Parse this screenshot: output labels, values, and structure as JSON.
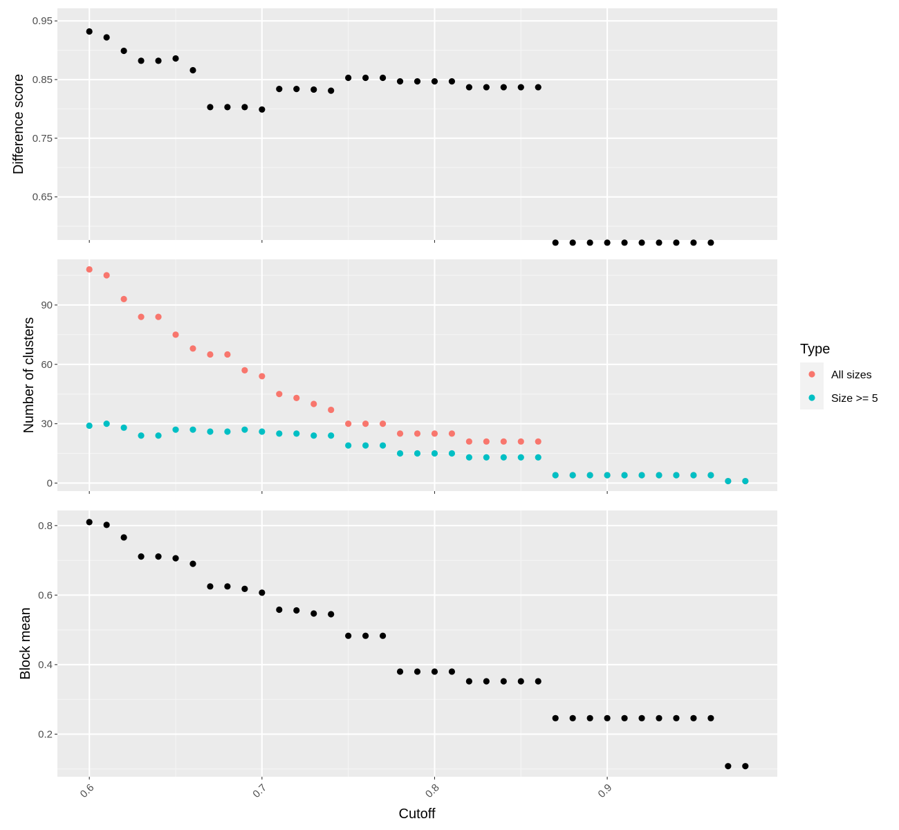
{
  "colors": {
    "panel_bg": "#ebebeb",
    "grid_major": "#ffffff",
    "grid_minor": "#f5f5f5",
    "tick_mark": "#333333",
    "tick_text": "#4d4d4d",
    "black_points": "#000000",
    "all_sizes": "#f8766d",
    "size_ge_5": "#00bfc4",
    "legend_key_bg": "#f2f2f2"
  },
  "chart_data": {
    "type": "scatter",
    "xlabel": "Cutoff",
    "x_tick_labels": [
      "0.6",
      "0.7",
      "0.8",
      "0.9"
    ],
    "x_ticks": [
      0.6,
      0.7,
      0.8,
      0.9
    ],
    "xlim": [
      0.5815,
      0.9985
    ],
    "legend": {
      "title": "Type",
      "position": "right",
      "entries": [
        {
          "label": "All sizes",
          "color": "#f8766d"
        },
        {
          "label": "Size >= 5",
          "color": "#00bfc4"
        }
      ]
    },
    "panels": [
      {
        "ylabel": "Difference score",
        "ylim": [
          0.5765,
          0.9715
        ],
        "y_ticks": [
          0.65,
          0.75,
          0.85,
          0.95
        ],
        "y_tick_labels": [
          "0.65",
          "0.75",
          "0.85",
          "0.95"
        ],
        "series": [
          {
            "color": "#000000",
            "x": [
              0.6,
              0.61,
              0.62,
              0.63,
              0.64,
              0.65,
              0.66,
              0.67,
              0.68,
              0.69,
              0.7,
              0.71,
              0.72,
              0.73,
              0.74,
              0.75,
              0.76,
              0.77,
              0.78,
              0.79,
              0.8,
              0.81,
              0.82,
              0.83,
              0.84,
              0.85,
              0.86,
              0.87,
              0.88,
              0.89,
              0.9,
              0.91,
              0.92,
              0.93,
              0.94,
              0.95,
              0.96
            ],
            "y": [
              0.932,
              0.922,
              0.899,
              0.882,
              0.882,
              0.886,
              0.866,
              0.803,
              0.803,
              0.803,
              0.799,
              0.834,
              0.834,
              0.833,
              0.831,
              0.853,
              0.853,
              0.853,
              0.847,
              0.847,
              0.847,
              0.847,
              0.837,
              0.837,
              0.837,
              0.837,
              0.837,
              0.572,
              0.572,
              0.572,
              0.572,
              0.572,
              0.572,
              0.572,
              0.572,
              0.572,
              0.572
            ]
          }
        ]
      },
      {
        "ylabel": "Number of clusters",
        "ylim": [
          -4.05,
          113.05
        ],
        "y_ticks": [
          0,
          30,
          60,
          90
        ],
        "y_tick_labels": [
          "0",
          "30",
          "60",
          "90"
        ],
        "series": [
          {
            "name": "All sizes",
            "color": "#f8766d",
            "x": [
              0.6,
              0.61,
              0.62,
              0.63,
              0.64,
              0.65,
              0.66,
              0.67,
              0.68,
              0.69,
              0.7,
              0.71,
              0.72,
              0.73,
              0.74,
              0.75,
              0.76,
              0.77,
              0.78,
              0.79,
              0.8,
              0.81,
              0.82,
              0.83,
              0.84,
              0.85,
              0.86,
              0.87,
              0.88,
              0.89,
              0.9,
              0.91,
              0.92,
              0.93,
              0.94,
              0.95,
              0.96,
              0.97,
              0.98
            ],
            "y": [
              108,
              105,
              93,
              84,
              84,
              75,
              68,
              65,
              65,
              57,
              54,
              45,
              43,
              40,
              37,
              30,
              30,
              30,
              25,
              25,
              25,
              25,
              21,
              21,
              21,
              21,
              21,
              4,
              4,
              4,
              4,
              4,
              4,
              4,
              4,
              4,
              4,
              1,
              1
            ]
          },
          {
            "name": "Size >= 5",
            "color": "#00bfc4",
            "x": [
              0.6,
              0.61,
              0.62,
              0.63,
              0.64,
              0.65,
              0.66,
              0.67,
              0.68,
              0.69,
              0.7,
              0.71,
              0.72,
              0.73,
              0.74,
              0.75,
              0.76,
              0.77,
              0.78,
              0.79,
              0.8,
              0.81,
              0.82,
              0.83,
              0.84,
              0.85,
              0.86,
              0.87,
              0.88,
              0.89,
              0.9,
              0.91,
              0.92,
              0.93,
              0.94,
              0.95,
              0.96,
              0.97,
              0.98
            ],
            "y": [
              29,
              30,
              28,
              24,
              24,
              27,
              27,
              26,
              26,
              27,
              26,
              25,
              25,
              24,
              24,
              19,
              19,
              19,
              15,
              15,
              15,
              15,
              13,
              13,
              13,
              13,
              13,
              4,
              4,
              4,
              4,
              4,
              4,
              4,
              4,
              4,
              4,
              1,
              1
            ]
          }
        ]
      },
      {
        "ylabel": "Block mean",
        "ylim": [
          0.0775,
          0.8435
        ],
        "y_ticks": [
          0.2,
          0.4,
          0.6,
          0.8
        ],
        "y_tick_labels": [
          "0.2",
          "0.4",
          "0.6",
          "0.8"
        ],
        "series": [
          {
            "color": "#000000",
            "x": [
              0.6,
              0.61,
              0.62,
              0.63,
              0.64,
              0.65,
              0.66,
              0.67,
              0.68,
              0.69,
              0.7,
              0.71,
              0.72,
              0.73,
              0.74,
              0.75,
              0.76,
              0.77,
              0.78,
              0.79,
              0.8,
              0.81,
              0.82,
              0.83,
              0.84,
              0.85,
              0.86,
              0.87,
              0.88,
              0.89,
              0.9,
              0.91,
              0.92,
              0.93,
              0.94,
              0.95,
              0.96,
              0.97,
              0.98
            ],
            "y": [
              0.81,
              0.802,
              0.766,
              0.711,
              0.711,
              0.706,
              0.69,
              0.625,
              0.625,
              0.618,
              0.607,
              0.558,
              0.556,
              0.547,
              0.545,
              0.483,
              0.483,
              0.483,
              0.38,
              0.38,
              0.38,
              0.38,
              0.352,
              0.352,
              0.352,
              0.352,
              0.352,
              0.246,
              0.246,
              0.246,
              0.246,
              0.246,
              0.246,
              0.246,
              0.246,
              0.246,
              0.246,
              0.108,
              0.108
            ]
          }
        ]
      }
    ]
  }
}
